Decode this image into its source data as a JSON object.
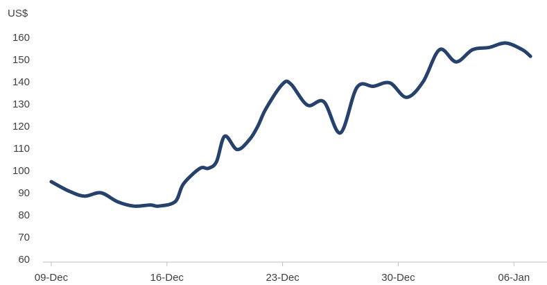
{
  "chart_data": {
    "type": "line",
    "title": "",
    "xlabel": "",
    "ylabel": "",
    "unit_label": "US$",
    "ylim": [
      60,
      160
    ],
    "yticks": [
      60,
      70,
      80,
      90,
      100,
      110,
      120,
      130,
      140,
      150,
      160
    ],
    "grid": false,
    "legend": "none",
    "line_color": "#26416b",
    "x_ticks": [
      {
        "date": "2024-12-09",
        "label": "09-Dec"
      },
      {
        "date": "2024-12-16",
        "label": "16-Dec"
      },
      {
        "date": "2024-12-23",
        "label": "23-Dec"
      },
      {
        "date": "2024-12-30",
        "label": "30-Dec"
      },
      {
        "date": "2025-01-06",
        "label": "06-Jan"
      }
    ],
    "x_range": [
      "2024-12-08 12:00",
      "2025-01-08 00:00"
    ],
    "series": [
      {
        "points": [
          {
            "x": "2024-12-09 00:00",
            "y": 95
          },
          {
            "x": "2024-12-10 00:00",
            "y": 91
          },
          {
            "x": "2024-12-11 00:00",
            "y": 88.5
          },
          {
            "x": "2024-12-12 00:00",
            "y": 90
          },
          {
            "x": "2024-12-13 00:00",
            "y": 86
          },
          {
            "x": "2024-12-14 00:00",
            "y": 84
          },
          {
            "x": "2024-12-15 00:00",
            "y": 84.5
          },
          {
            "x": "2024-12-15 12:00",
            "y": 84
          },
          {
            "x": "2024-12-16 12:00",
            "y": 86
          },
          {
            "x": "2024-12-17 00:00",
            "y": 94
          },
          {
            "x": "2024-12-18 00:00",
            "y": 101
          },
          {
            "x": "2024-12-18 12:00",
            "y": 101
          },
          {
            "x": "2024-12-19 00:00",
            "y": 104
          },
          {
            "x": "2024-12-19 12:00",
            "y": 115.5
          },
          {
            "x": "2024-12-20 06:00",
            "y": 109.5
          },
          {
            "x": "2024-12-21 00:00",
            "y": 114
          },
          {
            "x": "2024-12-21 12:00",
            "y": 120
          },
          {
            "x": "2024-12-22 00:00",
            "y": 128
          },
          {
            "x": "2024-12-23 00:00",
            "y": 139
          },
          {
            "x": "2024-12-23 12:00",
            "y": 139
          },
          {
            "x": "2024-12-24 12:00",
            "y": 129.5
          },
          {
            "x": "2024-12-25 12:00",
            "y": 131
          },
          {
            "x": "2024-12-26 12:00",
            "y": 117
          },
          {
            "x": "2024-12-27 12:00",
            "y": 137.5
          },
          {
            "x": "2024-12-28 12:00",
            "y": 138
          },
          {
            "x": "2024-12-29 12:00",
            "y": 139.5
          },
          {
            "x": "2024-12-30 12:00",
            "y": 133
          },
          {
            "x": "2024-12-31 12:00",
            "y": 140
          },
          {
            "x": "2025-01-01 12:00",
            "y": 154.5
          },
          {
            "x": "2025-01-02 12:00",
            "y": 149
          },
          {
            "x": "2025-01-03 12:00",
            "y": 154.5
          },
          {
            "x": "2025-01-04 12:00",
            "y": 155.5
          },
          {
            "x": "2025-01-05 12:00",
            "y": 157.5
          },
          {
            "x": "2025-01-06 12:00",
            "y": 154.5
          },
          {
            "x": "2025-01-07 00:00",
            "y": 151.5
          }
        ]
      }
    ]
  }
}
